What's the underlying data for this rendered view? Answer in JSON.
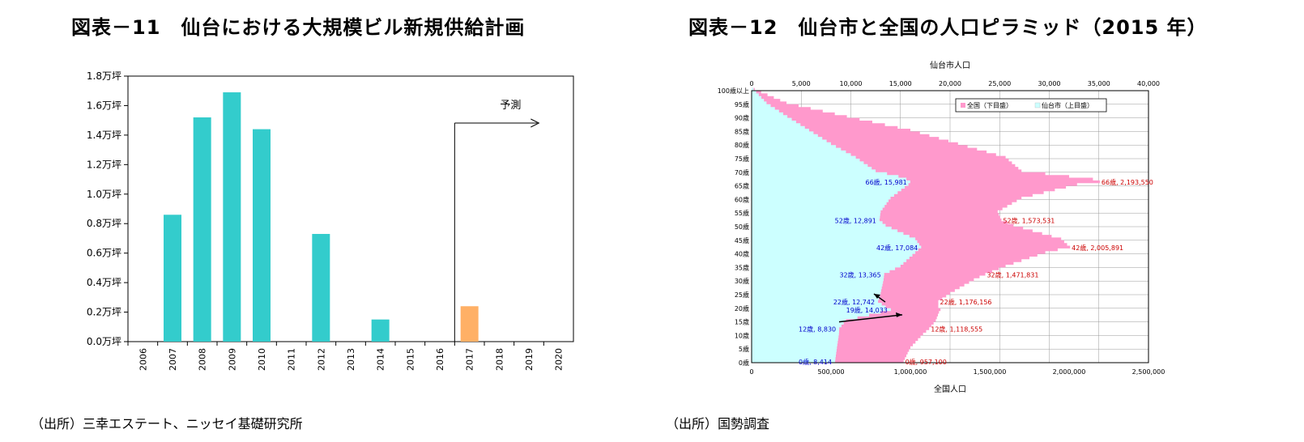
{
  "left": {
    "title": "図表－11　仙台における大規模ビル新規供給計画",
    "source": "（出所）三幸エステート、ニッセイ基礎研究所"
  },
  "right": {
    "title": "図表－12　仙台市と全国の人口ピラミッド（2015 年）",
    "source": "（出所）国勢調査"
  },
  "colors": {
    "actual": "#33CCCC",
    "forecast": "#FFB066",
    "national": "#FF99CC",
    "sendai": "#CCFFFF",
    "blue_label": "#0000CC",
    "red_label": "#CC0000"
  },
  "chart_data": [
    {
      "type": "bar",
      "categories": [
        "2006",
        "2007",
        "2008",
        "2009",
        "2010",
        "2011",
        "2012",
        "2013",
        "2014",
        "2015",
        "2016",
        "2017",
        "2018",
        "2019",
        "2020"
      ],
      "values": [
        0,
        0.86,
        1.52,
        1.69,
        1.44,
        0,
        0.73,
        0,
        0.15,
        0,
        0,
        0.24,
        0,
        0,
        0
      ],
      "forecast_from": "2017",
      "annotation": "予測",
      "yticks": [
        "0.0万坪",
        "0.2万坪",
        "0.4万坪",
        "0.6万坪",
        "0.8万坪",
        "1.0万坪",
        "1.2万坪",
        "1.4万坪",
        "1.6万坪",
        "1.8万坪"
      ],
      "ylim": [
        0,
        1.8
      ],
      "grid": false
    },
    {
      "type": "area",
      "top_axis_label": "仙台市人口",
      "bottom_axis_label": "全国人口",
      "top_ticks": [
        "0",
        "5,000",
        "10,000",
        "15,000",
        "20,000",
        "25,000",
        "30,000",
        "35,000",
        "40,000"
      ],
      "bottom_ticks": [
        "0",
        "500,000",
        "1,000,000",
        "1,500,000",
        "2,000,000",
        "2,500,000"
      ],
      "top_xlim": [
        0,
        40000
      ],
      "bottom_xlim": [
        0,
        2500000
      ],
      "y_ticks": [
        "0歳",
        "5歳",
        "10歳",
        "15歳",
        "20歳",
        "25歳",
        "30歳",
        "35歳",
        "40歳",
        "45歳",
        "50歳",
        "55歳",
        "60歳",
        "65歳",
        "70歳",
        "75歳",
        "80歳",
        "85歳",
        "90歳",
        "95歳",
        "100歳以上"
      ],
      "legend": [
        "全国（下目盛）",
        "仙台市（上目盛）"
      ],
      "legend_position": "top-right",
      "grid": true,
      "series": [
        {
          "name": "全国（下目盛）",
          "ages": [
            0,
            5,
            10,
            12,
            15,
            18,
            19,
            20,
            22,
            25,
            30,
            32,
            35,
            40,
            42,
            45,
            50,
            52,
            55,
            60,
            65,
            66,
            67,
            68,
            70,
            75,
            80,
            85,
            90,
            95,
            100
          ],
          "values": [
            957100,
            1000000,
            1080000,
            1118555,
            1160000,
            1180000,
            1190000,
            1176156,
            1176156,
            1250000,
            1400000,
            1471831,
            1600000,
            1850000,
            2005891,
            1950000,
            1650000,
            1573531,
            1550000,
            1700000,
            2050000,
            2193550,
            2150000,
            2000000,
            1700000,
            1600000,
            1300000,
            1000000,
            600000,
            220000,
            20000
          ]
        },
        {
          "name": "仙台市（上目盛）",
          "ages": [
            0,
            5,
            10,
            12,
            15,
            18,
            19,
            20,
            22,
            25,
            30,
            32,
            35,
            40,
            42,
            45,
            50,
            52,
            55,
            60,
            65,
            66,
            67,
            68,
            70,
            75,
            80,
            85,
            90,
            95,
            100
          ],
          "values": [
            8414,
            8600,
            8800,
            8830,
            9500,
            13000,
            14033,
            13500,
            12742,
            13000,
            13300,
            13365,
            15000,
            16500,
            17084,
            16500,
            13500,
            12891,
            13000,
            14000,
            15800,
            15981,
            15600,
            14800,
            12500,
            10500,
            8000,
            5800,
            3600,
            1500,
            200
          ]
        }
      ],
      "labels_sendai": [
        {
          "age": 0,
          "text": "0歳, 8,414"
        },
        {
          "age": 12,
          "text": "12歳, 8,830"
        },
        {
          "age": 19,
          "text": "19歳, 14,033"
        },
        {
          "age": 22,
          "text": "22歳, 12,742"
        },
        {
          "age": 32,
          "text": "32歳, 13,365"
        },
        {
          "age": 42,
          "text": "42歳, 17,084"
        },
        {
          "age": 52,
          "text": "52歳, 12,891"
        },
        {
          "age": 66,
          "text": "66歳, 15,981"
        }
      ],
      "labels_national": [
        {
          "age": 0,
          "text": "0歳, 957,100"
        },
        {
          "age": 12,
          "text": "12歳, 1,118,555"
        },
        {
          "age": 22,
          "text": "22歳, 1,176,156"
        },
        {
          "age": 32,
          "text": "32歳, 1,471,831"
        },
        {
          "age": 42,
          "text": "42歳, 2,005,891"
        },
        {
          "age": 52,
          "text": "52歳, 1,573,531"
        },
        {
          "age": 66,
          "text": "66歳, 2,193,550"
        }
      ]
    }
  ]
}
